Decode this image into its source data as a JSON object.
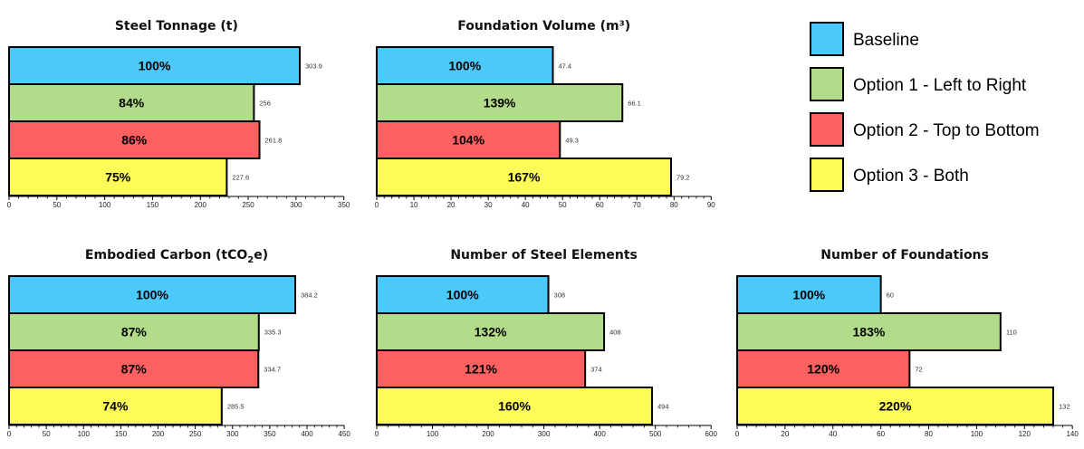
{
  "colors": {
    "baseline": "#4cc9fb",
    "option1": "#b3dc8a",
    "option2": "#fd6060",
    "option3": "#fdfb57"
  },
  "legend": {
    "items": [
      {
        "label": "Baseline",
        "color": "#4cc9fb"
      },
      {
        "label": "Option 1 - Left to Right",
        "color": "#b3dc8a"
      },
      {
        "label": "Option 2 - Top to Bottom",
        "color": "#fd6060"
      },
      {
        "label": "Option 3 - Both",
        "color": "#fdfb57"
      }
    ]
  },
  "chart_data": [
    {
      "type": "bar",
      "orientation": "horizontal",
      "title": "Steel Tonnage (t)",
      "series": [
        "Baseline",
        "Option 1 - Left to Right",
        "Option 2 - Top to Bottom",
        "Option 3 - Both"
      ],
      "values": [
        303.9,
        256,
        261.8,
        227.6
      ],
      "value_labels": [
        "303.9",
        "256",
        "261.8",
        "227.6"
      ],
      "percent_labels": [
        "100%",
        "84%",
        "86%",
        "75%"
      ],
      "xlim": [
        0,
        350
      ],
      "ticks": [
        0,
        50,
        100,
        150,
        200,
        250,
        300,
        350
      ]
    },
    {
      "type": "bar",
      "orientation": "horizontal",
      "title": "Foundation Volume (m³)",
      "series": [
        "Baseline",
        "Option 1 - Left to Right",
        "Option 2 - Top to Bottom",
        "Option 3 - Both"
      ],
      "values": [
        47.4,
        66.1,
        49.3,
        79.2
      ],
      "value_labels": [
        "47.4",
        "66.1",
        "49.3",
        "79.2"
      ],
      "percent_labels": [
        "100%",
        "139%",
        "104%",
        "167%"
      ],
      "xlim": [
        0,
        90
      ],
      "ticks": [
        0,
        10,
        20,
        30,
        40,
        50,
        60,
        70,
        80,
        90
      ]
    },
    {
      "type": "bar",
      "orientation": "horizontal",
      "title_parts": [
        "Embodied Carbon (tCO",
        "2",
        "e)"
      ],
      "series": [
        "Baseline",
        "Option 1 - Left to Right",
        "Option 2 - Top to Bottom",
        "Option 3 - Both"
      ],
      "values": [
        384.2,
        335.3,
        334.7,
        285.5
      ],
      "value_labels": [
        "384.2",
        "335.3",
        "334.7",
        "285.5"
      ],
      "percent_labels": [
        "100%",
        "87%",
        "87%",
        "74%"
      ],
      "xlim": [
        0,
        450
      ],
      "ticks": [
        0,
        50,
        100,
        150,
        200,
        250,
        300,
        350,
        400,
        450
      ]
    },
    {
      "type": "bar",
      "orientation": "horizontal",
      "title": "Number of Steel Elements",
      "series": [
        "Baseline",
        "Option 1 - Left to Right",
        "Option 2 - Top to Bottom",
        "Option 3 - Both"
      ],
      "values": [
        308,
        408,
        374,
        494
      ],
      "value_labels": [
        "308",
        "408",
        "374",
        "494"
      ],
      "percent_labels": [
        "100%",
        "132%",
        "121%",
        "160%"
      ],
      "xlim": [
        0,
        600
      ],
      "ticks": [
        0,
        100,
        200,
        300,
        400,
        500,
        600
      ]
    },
    {
      "type": "bar",
      "orientation": "horizontal",
      "title": "Number of Foundations",
      "series": [
        "Baseline",
        "Option 1 - Left to Right",
        "Option 2 - Top to Bottom",
        "Option 3 - Both"
      ],
      "values": [
        60,
        110,
        72,
        132
      ],
      "value_labels": [
        "60",
        "110",
        "72",
        "132"
      ],
      "percent_labels": [
        "100%",
        "183%",
        "120%",
        "220%"
      ],
      "xlim": [
        0,
        140
      ],
      "ticks": [
        0,
        20,
        40,
        60,
        80,
        100,
        120,
        140
      ]
    }
  ]
}
